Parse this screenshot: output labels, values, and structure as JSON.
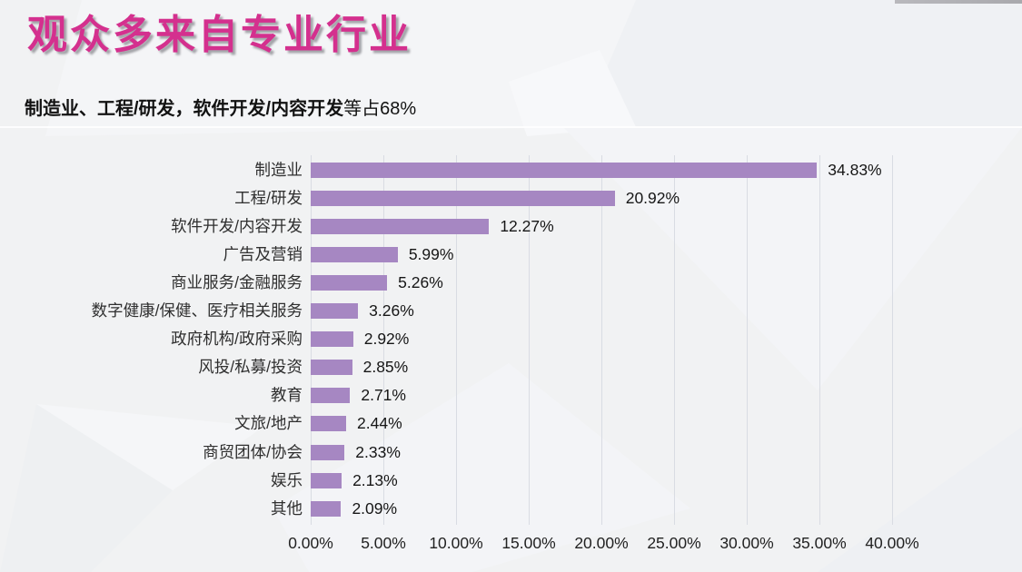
{
  "page": {
    "title": "观众多来自专业行业",
    "subtitle_bold": "制造业、工程/研发，软件开发/内容开发",
    "subtitle_rest": "等占68%",
    "accent_pink": "#d4308e"
  },
  "chart_data": {
    "type": "bar",
    "orientation": "horizontal",
    "title": "",
    "xlabel": "",
    "ylabel": "",
    "categories": [
      "制造业",
      "工程/研发",
      "软件开发/内容开发",
      "广告及营销",
      "商业服务/金融服务",
      "数字健康/保健、医疗相关服务",
      "政府机构/政府采购",
      "风投/私募/投资",
      "教育",
      "文旅/地产",
      "商贸团体/协会",
      "娱乐",
      "其他"
    ],
    "values": [
      34.83,
      20.92,
      12.27,
      5.99,
      5.26,
      3.26,
      2.92,
      2.85,
      2.71,
      2.44,
      2.33,
      2.13,
      2.09
    ],
    "value_labels": [
      "34.83%",
      "20.92%",
      "12.27%",
      "5.99%",
      "5.26%",
      "3.26%",
      "2.92%",
      "2.85%",
      "2.71%",
      "2.44%",
      "2.33%",
      "2.13%",
      "2.09%"
    ],
    "x_ticks": [
      "0.00%",
      "5.00%",
      "10.00%",
      "15.00%",
      "20.00%",
      "25.00%",
      "30.00%",
      "35.00%",
      "40.00%"
    ],
    "xlim": [
      0,
      40
    ],
    "tick_step": 5,
    "grid": true,
    "bar_color": "#a687c2",
    "gridline_color": "#d9dce3",
    "legend": "none"
  }
}
